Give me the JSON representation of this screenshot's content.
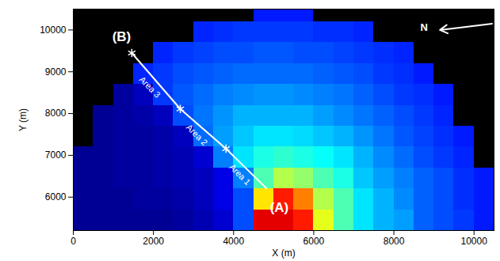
{
  "chart_data": {
    "type": "heatmap",
    "xlabel": "X (m)",
    "ylabel": "Y (m)",
    "xlim": [
      0,
      10500
    ],
    "ylim": [
      5200,
      10500
    ],
    "xticks": [
      0,
      2000,
      4000,
      6000,
      8000,
      10000
    ],
    "yticks": [
      6000,
      7000,
      8000,
      9000,
      10000
    ],
    "clim": [
      0.1,
      1.1
    ],
    "cells": {
      "x": [
        250,
        750,
        1250,
        1750,
        2250,
        2750,
        3250,
        3750,
        4250,
        4750,
        5250,
        5750,
        6250,
        6750,
        7250,
        7750,
        8250,
        8750,
        9250,
        9750,
        10250
      ],
      "y": [
        5450,
        5950,
        6450,
        6950,
        7450,
        7950,
        8450,
        8950,
        9450,
        9950,
        10450
      ],
      "values": [
        [
          0.12,
          0.12,
          0.12,
          0.12,
          0.12,
          0.13,
          0.15,
          0.18,
          0.3,
          1,
          1,
          0.95,
          0.7,
          0.55,
          0.45,
          0.4,
          0.38,
          0.32,
          0.3,
          0.28,
          0.25
        ],
        [
          0.12,
          0.12,
          0.12,
          0.13,
          0.13,
          0.14,
          0.16,
          0.2,
          0.3,
          0.75,
          0.95,
          0.85,
          0.65,
          0.55,
          0.45,
          0.4,
          0.36,
          0.32,
          0.3,
          0.27,
          0.25
        ],
        [
          0.12,
          0.12,
          0.13,
          0.13,
          0.14,
          0.15,
          0.16,
          0.2,
          0.35,
          0.55,
          0.65,
          0.62,
          0.55,
          0.5,
          0.42,
          0.38,
          0.35,
          0.32,
          0.3,
          0.27,
          0.25
        ],
        [
          0.12,
          0.12,
          0.13,
          0.13,
          0.14,
          0.15,
          0.18,
          0.35,
          0.45,
          0.5,
          0.52,
          0.5,
          0.48,
          0.45,
          0.4,
          0.36,
          0.33,
          0.3,
          0.28,
          0.26,
          null
        ],
        [
          null,
          0.12,
          0.13,
          0.13,
          0.14,
          0.16,
          0.33,
          0.38,
          0.42,
          0.45,
          0.45,
          0.44,
          0.42,
          0.4,
          0.37,
          0.34,
          0.31,
          0.29,
          0.27,
          0.25,
          null
        ],
        [
          null,
          0.12,
          0.13,
          0.14,
          0.16,
          0.3,
          0.34,
          0.37,
          0.4,
          0.4,
          0.4,
          0.4,
          0.38,
          0.36,
          0.34,
          0.32,
          0.3,
          0.28,
          0.26,
          null,
          null
        ],
        [
          null,
          null,
          0.13,
          0.16,
          0.28,
          0.31,
          0.33,
          0.35,
          0.36,
          0.37,
          0.37,
          0.36,
          0.35,
          0.34,
          0.32,
          0.3,
          0.28,
          0.27,
          0.25,
          null,
          null
        ],
        [
          null,
          null,
          null,
          0.26,
          0.28,
          0.3,
          0.31,
          0.32,
          0.33,
          0.33,
          0.33,
          0.33,
          0.32,
          0.31,
          0.3,
          0.28,
          0.27,
          0.25,
          null,
          null,
          null
        ],
        [
          null,
          null,
          null,
          null,
          0.26,
          0.28,
          0.29,
          0.3,
          0.3,
          0.31,
          0.31,
          0.3,
          0.3,
          0.29,
          0.28,
          0.27,
          0.26,
          null,
          null,
          null,
          null
        ],
        [
          null,
          null,
          null,
          null,
          null,
          null,
          0.26,
          0.27,
          0.28,
          0.28,
          0.28,
          0.28,
          0.27,
          0.27,
          0.26,
          null,
          null,
          null,
          null,
          null,
          null
        ],
        [
          null,
          null,
          null,
          null,
          null,
          null,
          null,
          null,
          null,
          0.25,
          0.25,
          0.25,
          null,
          null,
          null,
          null,
          null,
          null,
          null,
          null,
          null
        ]
      ]
    },
    "transect": {
      "x": [
        4820,
        3810,
        2670,
        1460
      ],
      "y": [
        6210,
        7160,
        8110,
        9450
      ]
    },
    "segment_labels": [
      {
        "text": "Area 1",
        "x": 4155,
        "y": 6535
      },
      {
        "text": "Area 2",
        "x": 3080,
        "y": 7485
      },
      {
        "text": "Area 3",
        "x": 1905,
        "y": 8630
      }
    ],
    "point_labels": [
      {
        "text": "(A)",
        "x": 5140,
        "y": 5755
      },
      {
        "text": "(B)",
        "x": 1205,
        "y": 9830
      }
    ],
    "north_arrow": {
      "text": "N",
      "x": [
        10450,
        9150
      ],
      "y": [
        10150,
        10000
      ],
      "label_x": 8755,
      "label_y": 10057
    }
  }
}
